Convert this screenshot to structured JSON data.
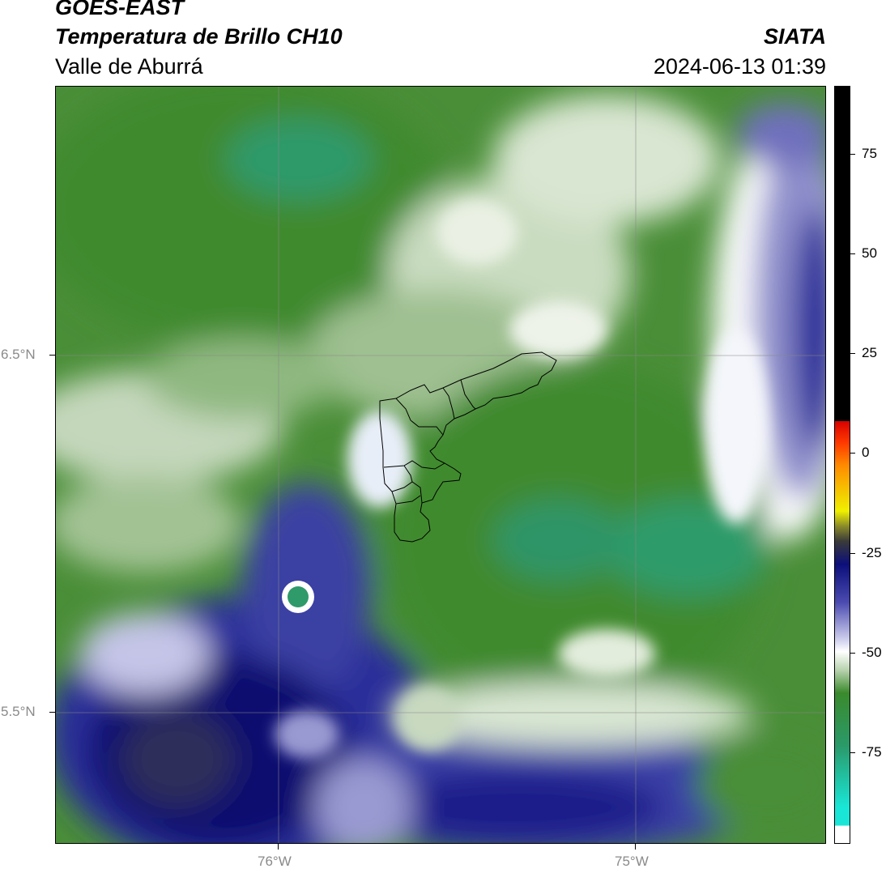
{
  "header": {
    "line1": "GOES-EAST",
    "line2": "Temperatura de Brillo CH10",
    "line3": "Valle de Aburrá",
    "org": "SIATA",
    "timestamp": "2024-06-13 01:39"
  },
  "map": {
    "lat_labels": [
      "6.5°N",
      "5.5°N"
    ],
    "lon_labels": [
      "76°W",
      "75°W"
    ]
  },
  "colorbar": {
    "ticks": [
      "75",
      "50",
      "25",
      "0",
      "-25",
      "-50",
      "-75"
    ],
    "colors": {
      "cyan": "#19e6d6",
      "teal": "#2a9a6a",
      "green": "#3a8a2c",
      "light_green": "#b7d2ad",
      "white": "#ffffff",
      "lavender": "#a9a9d8",
      "navy": "#0c0f7a",
      "olive": "#4a4a1a",
      "yellow": "#f5f000",
      "orange": "#ff9000",
      "red": "#ff1a00",
      "black": "#000000"
    }
  }
}
